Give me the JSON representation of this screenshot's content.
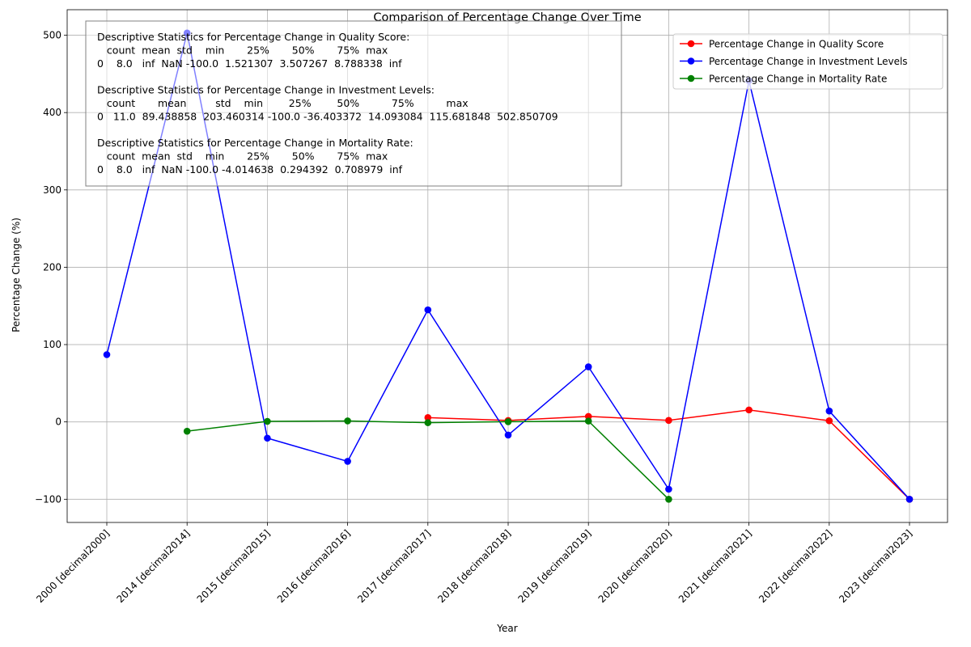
{
  "chart_data": {
    "type": "line",
    "title": "Comparison of Percentage Change Over Time",
    "xlabel": "Year",
    "ylabel": "Percentage Change (%)",
    "categories": [
      "2000 [decimal2000]",
      "2014 [decimal2014]",
      "2015 [decimal2015]",
      "2016 [decimal2016]",
      "2017 [decimal2017]",
      "2018 [decimal2018]",
      "2019 [decimal2019]",
      "2020 [decimal2020]",
      "2021 [decimal2021]",
      "2022 [decimal2022]",
      "2023 [decimal2023]"
    ],
    "ylim": [
      -130,
      533
    ],
    "yticks": [
      -100,
      0,
      100,
      200,
      300,
      400,
      500
    ],
    "grid": true,
    "legend_position": "top-right",
    "series": [
      {
        "name": "Percentage Change in Quality Score",
        "color": "#ff0000",
        "values": [
          null,
          null,
          null,
          null,
          5.6,
          1.9,
          7.1,
          2.0,
          15.5,
          1.5,
          -100.0
        ]
      },
      {
        "name": "Percentage Change in Investment Levels",
        "color": "#0000ff",
        "values": [
          87.0,
          502.85,
          -21.0,
          -51.0,
          144.9,
          -17.0,
          71.2,
          -87.0,
          441.0,
          14.1,
          -100.0
        ]
      },
      {
        "name": "Percentage Change in Mortality Rate",
        "color": "#008000",
        "values": [
          null,
          -12.0,
          0.7,
          1.3,
          -1.0,
          0.3,
          1.1,
          -100.0,
          null,
          null,
          null
        ]
      }
    ],
    "annotation_lines": [
      "Descriptive Statistics for Percentage Change in Quality Score:",
      "   count  mean  std    min       25%       50%       75%  max",
      "0    8.0   inf  NaN -100.0  1.521307  3.507267  8.788338  inf",
      "",
      "Descriptive Statistics for Percentage Change in Investment Levels:",
      "   count       mean         std    min        25%        50%          75%          max",
      "0   11.0  89.438858  203.460314 -100.0 -36.403372  14.093084  115.681848  502.850709",
      "",
      "Descriptive Statistics for Percentage Change in Mortality Rate:",
      "   count  mean  std    min       25%       50%       75%  max",
      "0    8.0   inf  NaN -100.0 -4.014638  0.294392  0.708979  inf"
    ]
  }
}
